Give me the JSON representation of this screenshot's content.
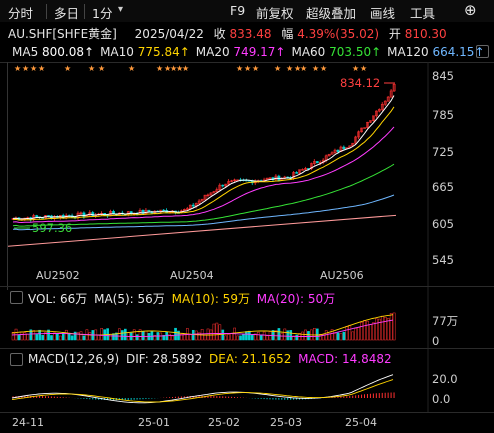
{
  "toolbar": {
    "items_left": [
      "分时",
      "多日",
      "1分"
    ],
    "items_right": [
      "F9",
      "前复权",
      "超级叠加",
      "画线",
      "工具"
    ]
  },
  "quote": {
    "symbol": "AU.SHF[SHFE黄金]",
    "date": "2025/04/22",
    "close_label": "收",
    "close": "833.48",
    "change_label": "幅",
    "change": "4.39%(35.02)",
    "open_label": "开",
    "open": "810.30"
  },
  "ma": [
    {
      "label": "MA5",
      "value": "800.08↑",
      "color": "#ffffff"
    },
    {
      "label": "MA10",
      "value": "775.84↑",
      "color": "#ffd400"
    },
    {
      "label": "MA20",
      "value": "749.17↑",
      "color": "#ff3cff"
    },
    {
      "label": "MA60",
      "value": "703.50↑",
      "color": "#36e336"
    },
    {
      "label": "MA120",
      "value": "664.15↑",
      "color": "#6fb7ff"
    }
  ],
  "price_axis": {
    "ticks": [
      "845",
      "785",
      "725",
      "665",
      "605",
      "545"
    ],
    "high_marker": "834.12",
    "low_marker": "597.36"
  },
  "contracts": [
    "AU2502",
    "AU2504",
    "AU2506"
  ],
  "volume": {
    "label": "VOL: 66万",
    "ma5": "MA(5): 56万",
    "ma10": "MA(10): 59万",
    "ma20": "MA(20): 50万",
    "axis_top": "77万",
    "axis_zero": "0"
  },
  "macd": {
    "label": "MACD(12,26,9)",
    "dif": "DIF: 28.5892",
    "dea": "DEA: 21.1652",
    "macd": "MACD: 14.8482",
    "axis_top": "20.0",
    "axis_zero": "0.0"
  },
  "date_axis": [
    "24-11",
    "25-01",
    "25-02",
    "25-03",
    "25-04"
  ],
  "colors": {
    "up": "#ff3030",
    "down": "#00d0d0",
    "dif": "#ffffff",
    "dea": "#ffd400"
  }
}
